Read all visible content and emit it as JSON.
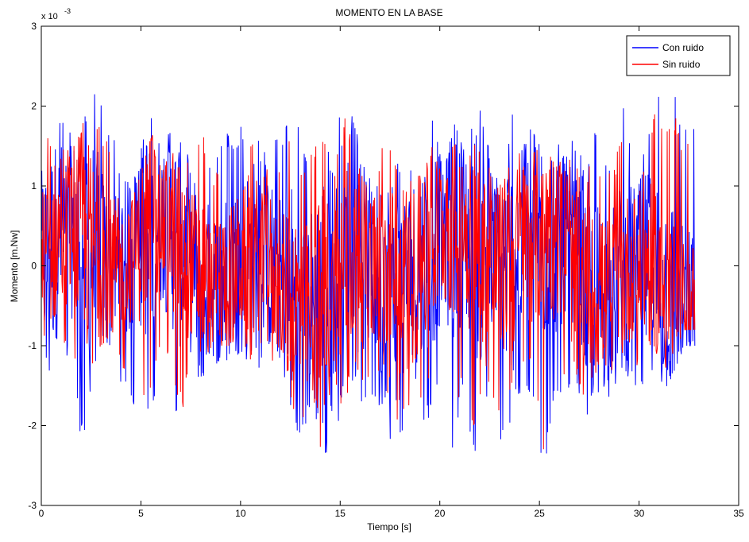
{
  "chart_data": {
    "type": "line",
    "title": "MOMENTO EN LA BASE",
    "xlabel": "Tiempo [s]",
    "ylabel": "Momento [m.Nw]",
    "y_exponent_label": "x 10",
    "y_exponent_power": "-3",
    "xlim": [
      0,
      35
    ],
    "ylim": [
      -3,
      3
    ],
    "xticks": [
      0,
      5,
      10,
      15,
      20,
      25,
      30,
      35
    ],
    "yticks": [
      -3,
      -2,
      -1,
      0,
      1,
      2,
      3
    ],
    "grid": false,
    "legend_position": "top-right",
    "x_start": 0,
    "x_end": 32.8,
    "series": [
      {
        "name": "Con ruido",
        "color": "#0000ff",
        "envelope_top": [
          2.25,
          2.0,
          1.9,
          1.85,
          2.2,
          2.47,
          2.1,
          1.7,
          1.2,
          0.95,
          1.5,
          2.05,
          1.4,
          1.8,
          1.5,
          1.6,
          2.05,
          1.2,
          1.75,
          1.6,
          1.85,
          1.95,
          1.4,
          1.65,
          1.6,
          2.3,
          1.35,
          1.8,
          1.95,
          1.2,
          2.25,
          1.9,
          1.3,
          1.0,
          1.95,
          1.7,
          1.1,
          1.5,
          1.35,
          1.95,
          1.1,
          1.8,
          1.5,
          1.85,
          2.0,
          1.1,
          1.25,
          2.05,
          1.6,
          1.9,
          1.3,
          1.8,
          1.4,
          1.75,
          1.2,
          1.75,
          1.35,
          1.45,
          2.1,
          1.1,
          1.5,
          2.2,
          2.1,
          2.2,
          1.7,
          2.0
        ],
        "envelope_bottom": [
          -0.9,
          -1.6,
          -1.3,
          -1.0,
          -2.3,
          -1.6,
          -1.2,
          -1.05,
          -1.5,
          -1.9,
          -2.1,
          -1.8,
          -1.3,
          -1.65,
          -2.2,
          -1.4,
          -1.5,
          -1.2,
          -1.25,
          -1.3,
          -1.1,
          -1.55,
          -1.2,
          -1.45,
          -1.3,
          -2.1,
          -2.3,
          -1.9,
          -2.9,
          -1.8,
          -2.3,
          -1.5,
          -2.0,
          -1.7,
          -1.85,
          -2.45,
          -2.2,
          -2.0,
          -2.3,
          -1.6,
          -1.9,
          -2.4,
          -1.55,
          -2.5,
          -1.6,
          -2.15,
          -2.3,
          -1.85,
          -1.5,
          -1.7,
          -2.83,
          -1.6,
          -1.7,
          -1.5,
          -2.05,
          -1.55,
          -1.85,
          -1.5,
          -1.3,
          -1.6,
          -1.6,
          -1.3,
          -1.6,
          -1.3,
          -1.0,
          -1.0
        ]
      },
      {
        "name": "Sin ruido",
        "color": "#ff0000",
        "envelope_top": [
          1.8,
          1.6,
          1.5,
          1.55,
          1.9,
          2.2,
          1.8,
          1.45,
          1.0,
          0.8,
          1.2,
          1.7,
          1.15,
          1.5,
          1.25,
          1.35,
          1.75,
          1.0,
          1.5,
          1.35,
          1.55,
          1.7,
          1.15,
          1.4,
          1.35,
          1.95,
          1.15,
          1.55,
          1.7,
          1.0,
          1.95,
          1.6,
          1.1,
          0.85,
          1.7,
          1.45,
          0.95,
          1.3,
          1.15,
          1.7,
          0.95,
          1.55,
          1.3,
          1.6,
          1.75,
          0.95,
          1.05,
          1.8,
          1.35,
          1.6,
          1.1,
          1.55,
          1.2,
          1.5,
          1.0,
          1.5,
          1.15,
          1.25,
          1.85,
          0.95,
          1.3,
          1.9,
          1.8,
          1.9,
          1.45,
          1.75
        ],
        "envelope_bottom": [
          -0.7,
          -1.3,
          -1.05,
          -0.8,
          -1.9,
          -1.3,
          -1.0,
          -0.85,
          -1.25,
          -1.6,
          -1.75,
          -1.5,
          -1.05,
          -1.35,
          -1.85,
          -1.15,
          -1.25,
          -1.0,
          -1.0,
          -1.05,
          -0.9,
          -1.3,
          -1.0,
          -1.2,
          -1.05,
          -1.8,
          -1.95,
          -1.6,
          -2.5,
          -1.5,
          -1.95,
          -1.25,
          -1.7,
          -1.4,
          -1.55,
          -2.1,
          -1.85,
          -1.7,
          -1.95,
          -1.3,
          -1.6,
          -2.05,
          -1.3,
          -2.15,
          -1.35,
          -1.8,
          -1.95,
          -1.55,
          -1.25,
          -1.4,
          -2.45,
          -1.3,
          -1.4,
          -1.25,
          -1.7,
          -1.3,
          -1.55,
          -1.25,
          -1.05,
          -1.3,
          -1.3,
          -1.05,
          -1.3,
          -1.05,
          -0.8,
          -0.8
        ]
      }
    ]
  }
}
